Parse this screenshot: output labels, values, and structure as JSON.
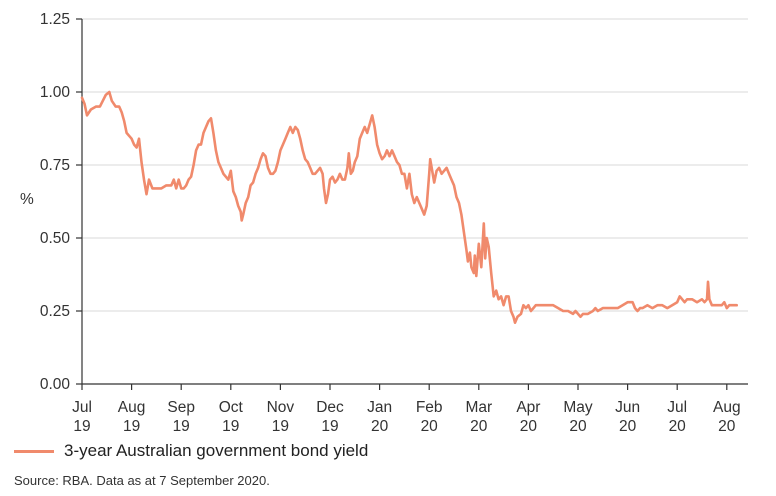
{
  "chart_data": {
    "type": "line",
    "ylabel": "%",
    "ylim": [
      0,
      1.25
    ],
    "yticks": [
      "0.00",
      "0.25",
      "0.50",
      "0.75",
      "1.00",
      "1.25"
    ],
    "ytick_values": [
      0,
      0.25,
      0.5,
      0.75,
      1.0,
      1.25
    ],
    "grid": true,
    "x_labels": [
      {
        "month": "Jul",
        "year": "19"
      },
      {
        "month": "Aug",
        "year": "19"
      },
      {
        "month": "Sep",
        "year": "19"
      },
      {
        "month": "Oct",
        "year": "19"
      },
      {
        "month": "Nov",
        "year": "19"
      },
      {
        "month": "Dec",
        "year": "19"
      },
      {
        "month": "Jan",
        "year": "20"
      },
      {
        "month": "Feb",
        "year": "20"
      },
      {
        "month": "Mar",
        "year": "20"
      },
      {
        "month": "Apr",
        "year": "20"
      },
      {
        "month": "May",
        "year": "20"
      },
      {
        "month": "Jun",
        "year": "20"
      },
      {
        "month": "Jul",
        "year": "20"
      },
      {
        "month": "Aug",
        "year": "20"
      }
    ],
    "x_unit": "months since 1 Jul 2019",
    "xlim": [
      0,
      13.2
    ],
    "series": [
      {
        "name": "3-year Australian government bond yield",
        "color": "#f08a6c",
        "points": [
          [
            0.0,
            0.98
          ],
          [
            0.05,
            0.96
          ],
          [
            0.1,
            0.92
          ],
          [
            0.18,
            0.94
          ],
          [
            0.28,
            0.95
          ],
          [
            0.36,
            0.95
          ],
          [
            0.42,
            0.97
          ],
          [
            0.48,
            0.99
          ],
          [
            0.55,
            1.0
          ],
          [
            0.6,
            0.97
          ],
          [
            0.68,
            0.95
          ],
          [
            0.75,
            0.95
          ],
          [
            0.8,
            0.93
          ],
          [
            0.85,
            0.9
          ],
          [
            0.9,
            0.86
          ],
          [
            0.95,
            0.85
          ],
          [
            1.0,
            0.84
          ],
          [
            1.05,
            0.82
          ],
          [
            1.1,
            0.81
          ],
          [
            1.15,
            0.84
          ],
          [
            1.2,
            0.76
          ],
          [
            1.25,
            0.7
          ],
          [
            1.3,
            0.65
          ],
          [
            1.35,
            0.7
          ],
          [
            1.42,
            0.67
          ],
          [
            1.5,
            0.67
          ],
          [
            1.6,
            0.67
          ],
          [
            1.7,
            0.68
          ],
          [
            1.8,
            0.68
          ],
          [
            1.85,
            0.7
          ],
          [
            1.9,
            0.67
          ],
          [
            1.95,
            0.7
          ],
          [
            2.0,
            0.67
          ],
          [
            2.05,
            0.67
          ],
          [
            2.1,
            0.68
          ],
          [
            2.15,
            0.7
          ],
          [
            2.2,
            0.71
          ],
          [
            2.25,
            0.75
          ],
          [
            2.3,
            0.8
          ],
          [
            2.35,
            0.82
          ],
          [
            2.4,
            0.82
          ],
          [
            2.45,
            0.86
          ],
          [
            2.5,
            0.88
          ],
          [
            2.55,
            0.9
          ],
          [
            2.6,
            0.91
          ],
          [
            2.65,
            0.86
          ],
          [
            2.7,
            0.8
          ],
          [
            2.75,
            0.76
          ],
          [
            2.8,
            0.74
          ],
          [
            2.85,
            0.72
          ],
          [
            2.9,
            0.71
          ],
          [
            2.95,
            0.7
          ],
          [
            3.0,
            0.73
          ],
          [
            3.05,
            0.66
          ],
          [
            3.1,
            0.64
          ],
          [
            3.15,
            0.61
          ],
          [
            3.2,
            0.59
          ],
          [
            3.22,
            0.56
          ],
          [
            3.25,
            0.58
          ],
          [
            3.3,
            0.62
          ],
          [
            3.35,
            0.64
          ],
          [
            3.4,
            0.68
          ],
          [
            3.45,
            0.69
          ],
          [
            3.5,
            0.72
          ],
          [
            3.55,
            0.74
          ],
          [
            3.6,
            0.77
          ],
          [
            3.65,
            0.79
          ],
          [
            3.7,
            0.78
          ],
          [
            3.75,
            0.74
          ],
          [
            3.8,
            0.72
          ],
          [
            3.85,
            0.72
          ],
          [
            3.9,
            0.73
          ],
          [
            3.95,
            0.76
          ],
          [
            4.0,
            0.8
          ],
          [
            4.05,
            0.82
          ],
          [
            4.1,
            0.84
          ],
          [
            4.15,
            0.86
          ],
          [
            4.2,
            0.88
          ],
          [
            4.25,
            0.86
          ],
          [
            4.3,
            0.88
          ],
          [
            4.35,
            0.87
          ],
          [
            4.4,
            0.84
          ],
          [
            4.45,
            0.8
          ],
          [
            4.5,
            0.77
          ],
          [
            4.55,
            0.76
          ],
          [
            4.6,
            0.74
          ],
          [
            4.65,
            0.72
          ],
          [
            4.7,
            0.72
          ],
          [
            4.75,
            0.73
          ],
          [
            4.8,
            0.74
          ],
          [
            4.85,
            0.72
          ],
          [
            4.88,
            0.67
          ],
          [
            4.92,
            0.62
          ],
          [
            4.96,
            0.65
          ],
          [
            5.0,
            0.7
          ],
          [
            5.05,
            0.71
          ],
          [
            5.1,
            0.69
          ],
          [
            5.15,
            0.7
          ],
          [
            5.2,
            0.72
          ],
          [
            5.25,
            0.7
          ],
          [
            5.3,
            0.7
          ],
          [
            5.35,
            0.74
          ],
          [
            5.38,
            0.79
          ],
          [
            5.42,
            0.72
          ],
          [
            5.46,
            0.73
          ],
          [
            5.5,
            0.76
          ],
          [
            5.55,
            0.78
          ],
          [
            5.6,
            0.84
          ],
          [
            5.65,
            0.86
          ],
          [
            5.7,
            0.88
          ],
          [
            5.75,
            0.86
          ],
          [
            5.8,
            0.89
          ],
          [
            5.85,
            0.92
          ],
          [
            5.9,
            0.88
          ],
          [
            5.95,
            0.82
          ],
          [
            6.0,
            0.79
          ],
          [
            6.05,
            0.77
          ],
          [
            6.1,
            0.78
          ],
          [
            6.15,
            0.8
          ],
          [
            6.2,
            0.78
          ],
          [
            6.25,
            0.8
          ],
          [
            6.3,
            0.78
          ],
          [
            6.35,
            0.76
          ],
          [
            6.4,
            0.75
          ],
          [
            6.45,
            0.72
          ],
          [
            6.5,
            0.72
          ],
          [
            6.55,
            0.67
          ],
          [
            6.6,
            0.72
          ],
          [
            6.65,
            0.65
          ],
          [
            6.7,
            0.62
          ],
          [
            6.75,
            0.64
          ],
          [
            6.8,
            0.62
          ],
          [
            6.85,
            0.6
          ],
          [
            6.9,
            0.58
          ],
          [
            6.95,
            0.61
          ],
          [
            7.0,
            0.72
          ],
          [
            7.02,
            0.77
          ],
          [
            7.05,
            0.74
          ],
          [
            7.1,
            0.69
          ],
          [
            7.15,
            0.73
          ],
          [
            7.2,
            0.74
          ],
          [
            7.25,
            0.72
          ],
          [
            7.3,
            0.73
          ],
          [
            7.35,
            0.74
          ],
          [
            7.4,
            0.72
          ],
          [
            7.45,
            0.7
          ],
          [
            7.5,
            0.68
          ],
          [
            7.55,
            0.64
          ],
          [
            7.6,
            0.62
          ],
          [
            7.65,
            0.58
          ],
          [
            7.7,
            0.52
          ],
          [
            7.75,
            0.46
          ],
          [
            7.78,
            0.42
          ],
          [
            7.82,
            0.45
          ],
          [
            7.85,
            0.4
          ],
          [
            7.9,
            0.38
          ],
          [
            7.92,
            0.44
          ],
          [
            7.95,
            0.37
          ],
          [
            8.0,
            0.48
          ],
          [
            8.05,
            0.4
          ],
          [
            8.1,
            0.55
          ],
          [
            8.13,
            0.43
          ],
          [
            8.16,
            0.5
          ],
          [
            8.2,
            0.47
          ],
          [
            8.25,
            0.38
          ],
          [
            8.3,
            0.3
          ],
          [
            8.35,
            0.32
          ],
          [
            8.4,
            0.29
          ],
          [
            8.45,
            0.3
          ],
          [
            8.5,
            0.27
          ],
          [
            8.55,
            0.3
          ],
          [
            8.6,
            0.3
          ],
          [
            8.65,
            0.25
          ],
          [
            8.7,
            0.23
          ],
          [
            8.73,
            0.21
          ],
          [
            8.78,
            0.23
          ],
          [
            8.85,
            0.24
          ],
          [
            8.9,
            0.27
          ],
          [
            8.95,
            0.26
          ],
          [
            9.0,
            0.27
          ],
          [
            9.05,
            0.25
          ],
          [
            9.1,
            0.26
          ],
          [
            9.15,
            0.27
          ],
          [
            9.3,
            0.27
          ],
          [
            9.5,
            0.27
          ],
          [
            9.6,
            0.26
          ],
          [
            9.7,
            0.25
          ],
          [
            9.8,
            0.25
          ],
          [
            9.9,
            0.24
          ],
          [
            9.95,
            0.25
          ],
          [
            10.0,
            0.24
          ],
          [
            10.05,
            0.23
          ],
          [
            10.1,
            0.24
          ],
          [
            10.2,
            0.24
          ],
          [
            10.3,
            0.25
          ],
          [
            10.35,
            0.26
          ],
          [
            10.4,
            0.25
          ],
          [
            10.5,
            0.26
          ],
          [
            10.6,
            0.26
          ],
          [
            10.7,
            0.26
          ],
          [
            10.8,
            0.26
          ],
          [
            10.9,
            0.27
          ],
          [
            11.0,
            0.28
          ],
          [
            11.1,
            0.28
          ],
          [
            11.15,
            0.26
          ],
          [
            11.2,
            0.25
          ],
          [
            11.25,
            0.26
          ],
          [
            11.3,
            0.26
          ],
          [
            11.4,
            0.27
          ],
          [
            11.5,
            0.26
          ],
          [
            11.6,
            0.27
          ],
          [
            11.7,
            0.27
          ],
          [
            11.8,
            0.26
          ],
          [
            11.9,
            0.27
          ],
          [
            12.0,
            0.28
          ],
          [
            12.05,
            0.3
          ],
          [
            12.1,
            0.29
          ],
          [
            12.15,
            0.28
          ],
          [
            12.2,
            0.29
          ],
          [
            12.3,
            0.29
          ],
          [
            12.4,
            0.28
          ],
          [
            12.5,
            0.29
          ],
          [
            12.55,
            0.28
          ],
          [
            12.6,
            0.29
          ],
          [
            12.62,
            0.35
          ],
          [
            12.65,
            0.29
          ],
          [
            12.7,
            0.27
          ],
          [
            12.8,
            0.27
          ],
          [
            12.9,
            0.27
          ],
          [
            12.95,
            0.28
          ],
          [
            13.0,
            0.26
          ],
          [
            13.05,
            0.27
          ],
          [
            13.1,
            0.27
          ],
          [
            13.2,
            0.27
          ]
        ]
      }
    ]
  },
  "legend": {
    "label": "3-year Australian government bond yield",
    "color": "#f08a6c"
  },
  "source": "Source: RBA. Data as at 7 September 2020."
}
